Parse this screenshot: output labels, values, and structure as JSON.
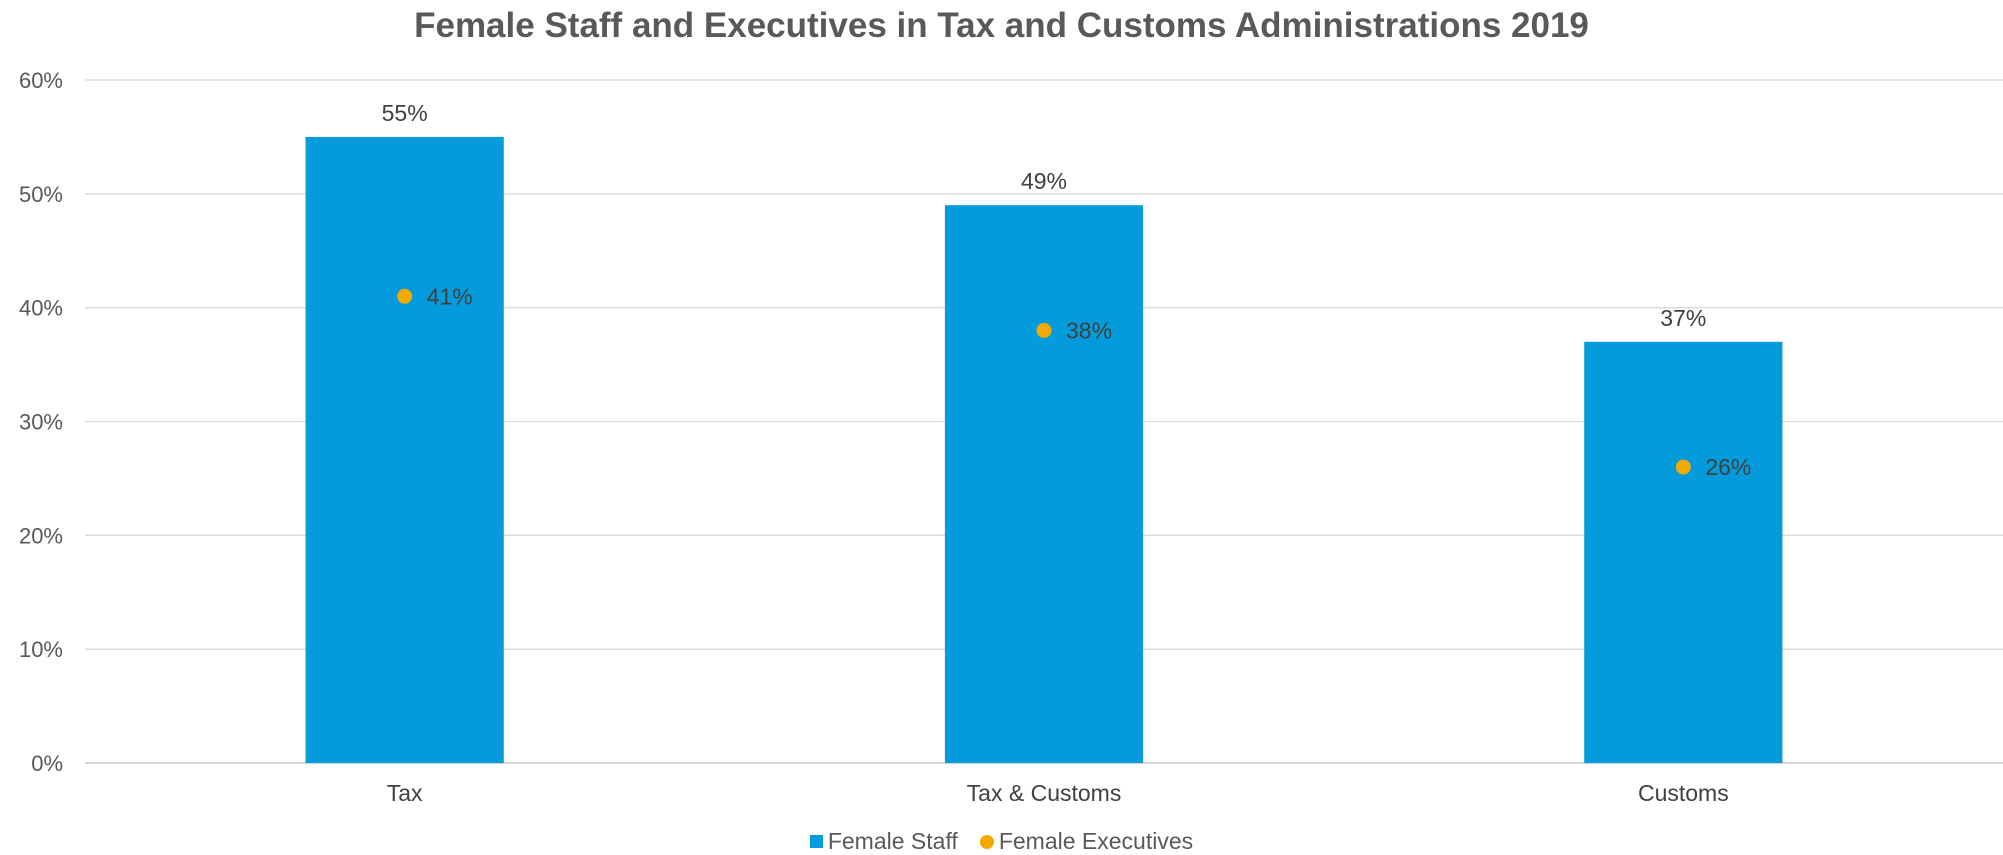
{
  "chart_data": {
    "type": "bar",
    "title": "Female Staff and Executives in Tax and Customs Administrations 2019",
    "categories": [
      "Tax",
      "Tax & Customs",
      "Customs"
    ],
    "series": [
      {
        "name": "Female Staff",
        "kind": "bar",
        "color": "#039BDB",
        "values": [
          55,
          49,
          37
        ],
        "labels": [
          "55%",
          "49%",
          "37%"
        ]
      },
      {
        "name": "Female Executives",
        "kind": "marker",
        "color": "#F2A900",
        "values": [
          41,
          38,
          26
        ],
        "labels": [
          "41%",
          "38%",
          "26%"
        ]
      }
    ],
    "ylim": [
      0,
      60
    ],
    "yticks": [
      0,
      10,
      20,
      30,
      40,
      50,
      60
    ],
    "ytick_labels": [
      "0%",
      "10%",
      "20%",
      "30%",
      "40%",
      "50%",
      "60%"
    ],
    "xlabel": "",
    "ylabel": "",
    "grid": true,
    "legend": "bottom"
  }
}
